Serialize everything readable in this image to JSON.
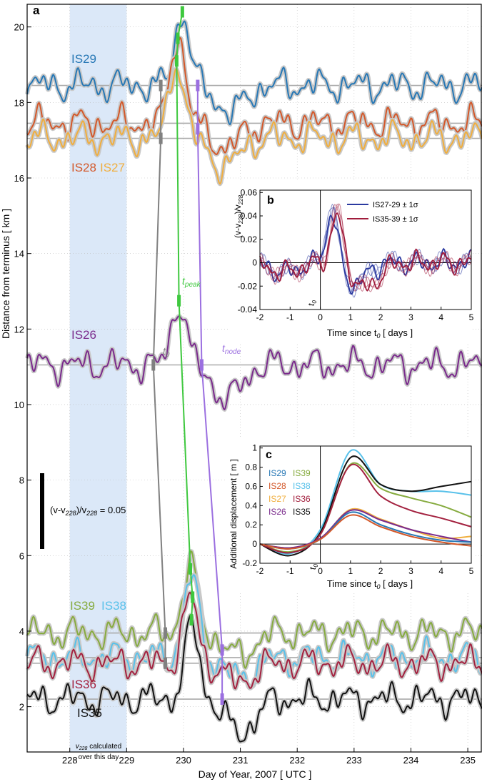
{
  "chart_data": [
    {
      "panel_label": "a",
      "type": "line",
      "xlabel": "Day of Year, 2007  [ UTC ]",
      "ylabel": "Distance from terminus  [ km ]",
      "xlim": [
        227.25,
        235.25
      ],
      "ylim": [
        0.8,
        20.6
      ],
      "xticks": [
        228,
        229,
        230,
        231,
        232,
        233,
        234,
        235
      ],
      "yticks": [
        2,
        4,
        6,
        8,
        10,
        12,
        14,
        16,
        18,
        20
      ],
      "shaded_band": {
        "x": [
          228,
          229
        ],
        "color": "#dbe8f8",
        "label_html": "v228 calculated over this day",
        "label_sub": "228",
        "label_main": "v",
        "label_rest": "calculated",
        "label_line2": "over this day"
      },
      "scale_bar": {
        "label_prefix": "(v-v",
        "label_sub1": "228",
        "label_mid": ")/v",
        "label_sub2": "228",
        "label_suffix": " = 0.05",
        "value": 0.05
      },
      "baselines": [
        18.45,
        17.45,
        17.05,
        11.05,
        3.95,
        3.3,
        3.15,
        2.2
      ],
      "series": [
        {
          "name": "IS29",
          "color": "#2677b5",
          "base": 18.45,
          "peak": 1.9,
          "dip": -0.7,
          "tpeak": 229.98
        },
        {
          "name": "IS28",
          "color": "#d3582a",
          "base": 17.45,
          "peak": 2.35,
          "dip": -0.65,
          "tpeak": 229.9
        },
        {
          "name": "IS27",
          "color": "#f0ae3e",
          "base": 17.05,
          "peak": 2.05,
          "dip": -0.75,
          "tpeak": 229.88
        },
        {
          "name": "IS26",
          "color": "#7a2a8c",
          "base": 11.05,
          "peak": 1.65,
          "dip": -0.9,
          "tpeak": 229.92
        },
        {
          "name": "IS39",
          "color": "#86ab3f",
          "base": 3.95,
          "peak": 1.75,
          "dip": -0.6,
          "tpeak": 230.12
        },
        {
          "name": "IS38",
          "color": "#58c1ea",
          "base": 3.3,
          "peak": 2.1,
          "dip": -0.55,
          "tpeak": 230.14
        },
        {
          "name": "IS36",
          "color": "#a3213f",
          "base": 3.15,
          "peak": 1.7,
          "dip": -0.5,
          "tpeak": 230.12
        },
        {
          "name": "IS35",
          "color": "#111111",
          "base": 2.2,
          "peak": 1.9,
          "dip": -0.9,
          "tpeak": 230.15
        }
      ],
      "series_labels": [
        {
          "name": "IS29",
          "color": "#2677b5"
        },
        {
          "name": "IS28",
          "color": "#d3582a"
        },
        {
          "name": "IS27",
          "color": "#f0ae3e"
        },
        {
          "name": "IS26",
          "color": "#7a2a8c"
        },
        {
          "name": "IS39",
          "color": "#86ab3f"
        },
        {
          "name": "IS38",
          "color": "#58c1ea"
        },
        {
          "name": "IS36",
          "color": "#a3213f"
        },
        {
          "name": "IS35",
          "color": "#111111"
        }
      ],
      "propagation_lines": [
        {
          "label": "t",
          "sub": "0",
          "color": "#808080",
          "points": [
            [
              229.6,
              18.45
            ],
            [
              229.6,
              17.05
            ],
            [
              229.47,
              11.05
            ],
            [
              229.68,
              3.95
            ],
            [
              229.68,
              3.15
            ]
          ]
        },
        {
          "label": "t",
          "sub": "peak",
          "color": "#3ec83e",
          "points": [
            [
              229.98,
              20.4
            ],
            [
              229.9,
              19.7
            ],
            [
              229.88,
              19.1
            ],
            [
              229.92,
              12.75
            ],
            [
              230.12,
              5.65
            ],
            [
              230.16,
              4.9
            ],
            [
              230.14,
              4.3
            ]
          ]
        },
        {
          "label": "t",
          "sub": "node",
          "color": "#9b6fe0",
          "points": [
            [
              230.25,
              18.45
            ],
            [
              230.25,
              17.3
            ],
            [
              230.32,
              11.05
            ],
            [
              230.68,
              3.5
            ],
            [
              230.68,
              2.2
            ]
          ]
        }
      ]
    },
    {
      "panel_label": "b",
      "type": "line",
      "xlabel_main": "Time since t",
      "xlabel_sub": "0",
      "xlabel_end": "  [ days ]",
      "ylabel_html": "(v-v228)/v228",
      "ylabel_main": "(v-v",
      "ylabel_sub": "228",
      "ylabel_mid": ")/v",
      "ylabel_sub2": "228",
      "xlim": [
        -2,
        5
      ],
      "ylim": [
        -0.04,
        0.062
      ],
      "xticks": [
        -2,
        -1,
        0,
        1,
        2,
        3,
        4,
        5
      ],
      "yticks": [
        -0.04,
        -0.02,
        0,
        0.02,
        0.04,
        0.06
      ],
      "ytick_labels": [
        "-0.04",
        "-0.02",
        "0",
        "0.02",
        "0.04",
        "0.06"
      ],
      "t0_label": "t",
      "t0_sub": "0",
      "legend": [
        {
          "name": "IS27-29 ± 1σ",
          "color": "#2b3aa0"
        },
        {
          "name": "IS35-39 ± 1σ",
          "color": "#a01c3c"
        }
      ],
      "series": [
        {
          "name": "IS27-29",
          "color": "#2b3aa0",
          "peak": 0.05,
          "tpeak": 0.4,
          "trough": -0.018,
          "ttrough": 1.1
        },
        {
          "name": "IS35-39",
          "color": "#a01c3c",
          "peak": 0.045,
          "tpeak": 0.55,
          "trough": -0.022,
          "ttrough": 1.5
        }
      ]
    },
    {
      "panel_label": "c",
      "type": "line",
      "xlabel_main": "Time since t",
      "xlabel_sub": "0",
      "xlabel_end": "  [ days ]",
      "ylabel": "Additional displacement  [ m ]",
      "xlim": [
        -2,
        5
      ],
      "ylim": [
        -0.2,
        1.02
      ],
      "xticks": [
        -2,
        -1,
        0,
        1,
        2,
        3,
        4,
        5
      ],
      "yticks": [
        -0.2,
        0,
        0.2,
        0.4,
        0.6,
        0.8,
        1
      ],
      "ytick_labels": [
        "-0.2",
        "0",
        "0.2",
        "0.4",
        "0.6",
        "0.8",
        "1"
      ],
      "t0_label": "t",
      "t0_sub": "0",
      "legend_left": [
        {
          "name": "IS29",
          "color": "#2677b5"
        },
        {
          "name": "IS28",
          "color": "#d3582a"
        },
        {
          "name": "IS27",
          "color": "#f0ae3e"
        },
        {
          "name": "IS26",
          "color": "#7a2a8c"
        }
      ],
      "legend_right": [
        {
          "name": "IS39",
          "color": "#86ab3f"
        },
        {
          "name": "IS38",
          "color": "#58c1ea"
        },
        {
          "name": "IS36",
          "color": "#a3213f"
        },
        {
          "name": "IS35",
          "color": "#111111"
        }
      ],
      "series": [
        {
          "name": "IS38",
          "color": "#58c1ea",
          "points": [
            [
              -2,
              0
            ],
            [
              -1,
              -0.1
            ],
            [
              0,
              0.15
            ],
            [
              1,
              0.97
            ],
            [
              2,
              0.62
            ],
            [
              3,
              0.55
            ],
            [
              4,
              0.55
            ],
            [
              5,
              0.51
            ]
          ]
        },
        {
          "name": "IS35",
          "color": "#111111",
          "points": [
            [
              -2,
              0
            ],
            [
              -1,
              -0.12
            ],
            [
              0,
              0.12
            ],
            [
              1,
              0.9
            ],
            [
              2,
              0.62
            ],
            [
              3,
              0.55
            ],
            [
              4,
              0.6
            ],
            [
              5,
              0.65
            ]
          ]
        },
        {
          "name": "IS39",
          "color": "#86ab3f",
          "points": [
            [
              -2,
              0
            ],
            [
              -1,
              -0.08
            ],
            [
              0,
              0.1
            ],
            [
              1,
              0.83
            ],
            [
              2,
              0.58
            ],
            [
              3,
              0.48
            ],
            [
              4,
              0.4
            ],
            [
              5,
              0.28
            ]
          ]
        },
        {
          "name": "IS36",
          "color": "#a3213f",
          "points": [
            [
              -2,
              0
            ],
            [
              -1,
              -0.09
            ],
            [
              0,
              0.1
            ],
            [
              1,
              0.82
            ],
            [
              2,
              0.5
            ],
            [
              3,
              0.35
            ],
            [
              4,
              0.27
            ],
            [
              5,
              0.18
            ]
          ]
        },
        {
          "name": "IS27",
          "color": "#f0ae3e",
          "points": [
            [
              -2,
              0
            ],
            [
              -1,
              -0.04
            ],
            [
              0,
              0.05
            ],
            [
              1,
              0.36
            ],
            [
              2,
              0.26
            ],
            [
              3,
              0.15
            ],
            [
              4,
              0.06
            ],
            [
              5,
              0.08
            ]
          ]
        },
        {
          "name": "IS26",
          "color": "#7a2a8c",
          "points": [
            [
              -2,
              0
            ],
            [
              -1,
              -0.04
            ],
            [
              0,
              0.06
            ],
            [
              1,
              0.35
            ],
            [
              2,
              0.25
            ],
            [
              3,
              0.15
            ],
            [
              4,
              0.08
            ],
            [
              5,
              0.02
            ]
          ]
        },
        {
          "name": "IS29",
          "color": "#2677b5",
          "points": [
            [
              -2,
              0
            ],
            [
              -1,
              -0.05
            ],
            [
              0,
              0.05
            ],
            [
              1,
              0.33
            ],
            [
              2,
              0.2
            ],
            [
              3,
              0.1
            ],
            [
              4,
              0.04
            ],
            [
              5,
              0.02
            ]
          ]
        },
        {
          "name": "IS28",
          "color": "#d3582a",
          "points": [
            [
              -2,
              0
            ],
            [
              -1,
              -0.05
            ],
            [
              0,
              0.05
            ],
            [
              1,
              0.3
            ],
            [
              2,
              0.18
            ],
            [
              3,
              0.08
            ],
            [
              4,
              0.02
            ],
            [
              5,
              -0.02
            ]
          ]
        }
      ]
    }
  ]
}
